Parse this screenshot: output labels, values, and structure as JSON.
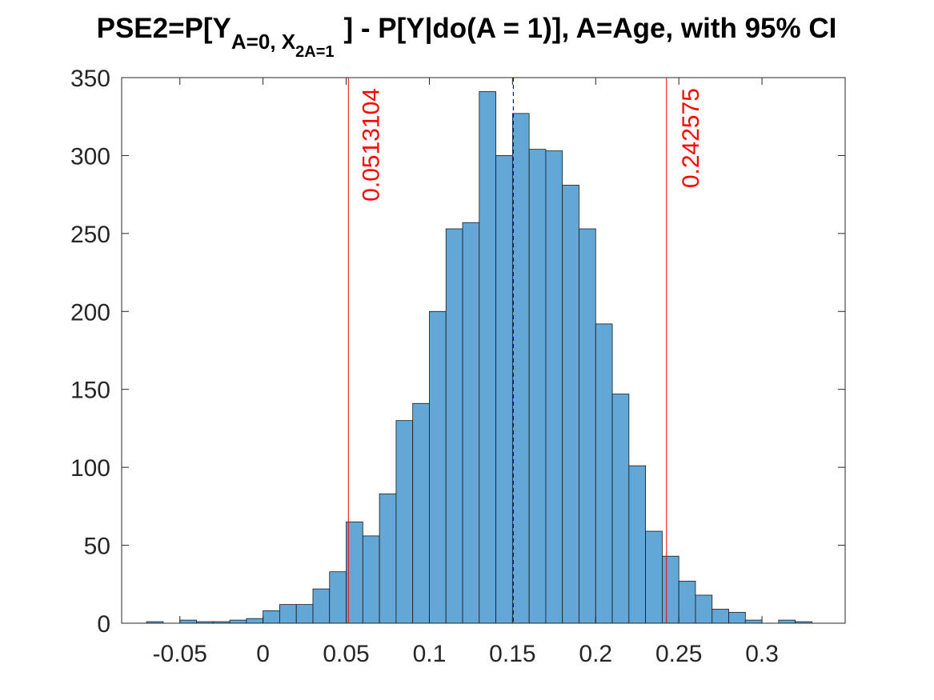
{
  "chart_data": {
    "type": "bar",
    "title": {
      "prefix": "PSE2=P[Y",
      "sub1": "A=0, X",
      "subsub": "2A=1",
      "suffix": "] - P[Y|do(A = 1)], A=Age, with 95% CI"
    },
    "xlabel": "",
    "ylabel": "",
    "xlim": [
      -0.085,
      0.35
    ],
    "ylim": [
      0,
      350
    ],
    "bin_width": 0.01,
    "bin_start": -0.07,
    "values": [
      1,
      0,
      2,
      1,
      1,
      2,
      3,
      8,
      12,
      12,
      22,
      33,
      65,
      56,
      83,
      130,
      141,
      200,
      253,
      257,
      341,
      300,
      327,
      304,
      303,
      281,
      253,
      192,
      147,
      101,
      59,
      43,
      27,
      18,
      9,
      7,
      2,
      0,
      2,
      1
    ],
    "xticks": [
      -0.05,
      0,
      0.05,
      0.1,
      0.15,
      0.2,
      0.25,
      0.3
    ],
    "xtick_labels": [
      "-0.05",
      "0",
      "0.05",
      "0.1",
      "0.15",
      "0.2",
      "0.25",
      "0.3"
    ],
    "yticks": [
      0,
      50,
      100,
      150,
      200,
      250,
      300,
      350
    ],
    "ytick_labels": [
      "0",
      "50",
      "100",
      "150",
      "200",
      "250",
      "300",
      "350"
    ],
    "grid": false,
    "bar_color": "#62a7d6",
    "bar_edge_color": "#1a1a1a",
    "ci_lower": 0.0513104,
    "ci_upper": 0.242575,
    "ci_lower_label": "0.0513104",
    "ci_upper_label": "0.242575",
    "ci_color": "#ff0000",
    "mean": 0.1505,
    "mean_color": "#0000ff"
  }
}
